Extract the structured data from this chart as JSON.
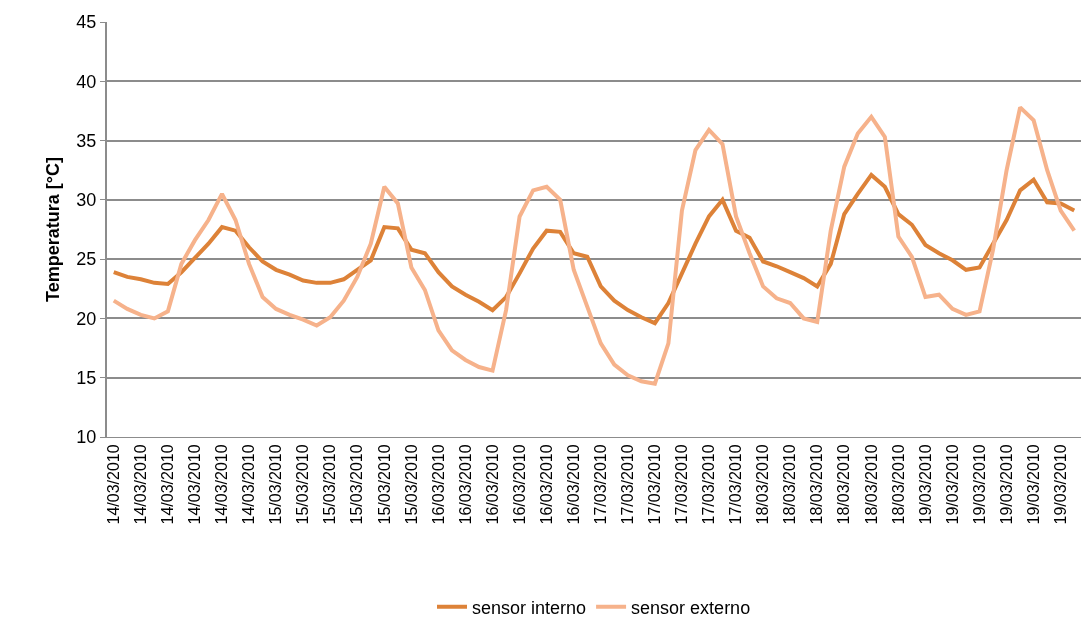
{
  "chart_data": {
    "type": "line",
    "ylabel": "Temperatura [°C]",
    "categories": [
      "14/03/2010",
      null,
      "14/03/2010",
      null,
      "14/03/2010",
      null,
      "14/03/2010",
      null,
      "14/03/2010",
      null,
      "14/03/2010",
      null,
      "15/03/2010",
      null,
      "15/03/2010",
      null,
      "15/03/2010",
      null,
      "15/03/2010",
      null,
      "15/03/2010",
      null,
      "15/03/2010",
      null,
      "16/03/2010",
      null,
      "16/03/2010",
      null,
      "16/03/2010",
      null,
      "16/03/2010",
      null,
      "16/03/2010",
      null,
      "16/03/2010",
      null,
      "17/03/2010",
      null,
      "17/03/2010",
      null,
      "17/03/2010",
      null,
      "17/03/2010",
      null,
      "17/03/2010",
      null,
      "17/03/2010",
      null,
      "18/03/2010",
      null,
      "18/03/2010",
      null,
      "18/03/2010",
      null,
      "18/03/2010",
      null,
      "18/03/2010",
      null,
      "18/03/2010",
      null,
      "19/03/2010",
      null,
      "19/03/2010",
      null,
      "19/03/2010",
      null,
      "19/03/2010",
      null,
      "19/03/2010",
      null,
      "19/03/2010",
      null
    ],
    "series": [
      {
        "name": "sensor interno",
        "color": "#dd8238",
        "values": [
          23.9,
          23.5,
          23.3,
          23.0,
          22.9,
          23.9,
          25.1,
          26.3,
          27.7,
          27.4,
          26.0,
          24.8,
          24.1,
          23.7,
          23.2,
          23.0,
          23.0,
          23.3,
          24.1,
          24.9,
          27.7,
          27.6,
          25.8,
          25.5,
          23.9,
          22.7,
          22.0,
          21.4,
          20.7,
          21.8,
          23.8,
          25.9,
          27.4,
          27.3,
          25.5,
          25.2,
          22.7,
          21.5,
          20.7,
          20.1,
          19.6,
          21.3,
          23.8,
          26.3,
          28.6,
          30.0,
          27.4,
          26.8,
          24.8,
          24.4,
          23.9,
          23.4,
          22.7,
          24.6,
          28.8,
          30.5,
          32.1,
          31.1,
          28.8,
          27.9,
          26.2,
          25.5,
          24.9,
          24.1,
          24.3,
          26.3,
          28.3,
          30.8,
          31.7,
          29.8,
          29.7,
          29.1
        ]
      },
      {
        "name": "sensor externo",
        "color": "#f6b28b",
        "values": [
          21.5,
          20.8,
          20.3,
          20.0,
          20.6,
          24.6,
          26.6,
          28.3,
          30.5,
          28.3,
          24.6,
          21.8,
          20.8,
          20.3,
          19.9,
          19.4,
          20.1,
          21.5,
          23.5,
          26.3,
          31.1,
          29.7,
          24.3,
          22.4,
          19.0,
          17.3,
          16.5,
          15.9,
          15.6,
          20.7,
          28.6,
          30.8,
          31.1,
          30.0,
          24.1,
          21.0,
          17.9,
          16.1,
          15.2,
          14.7,
          14.5,
          17.9,
          29.1,
          34.2,
          35.9,
          34.7,
          28.6,
          25.5,
          22.7,
          21.7,
          21.3,
          20.0,
          19.7,
          27.4,
          32.8,
          35.6,
          37.0,
          35.3,
          26.9,
          25.2,
          21.8,
          22.0,
          20.8,
          20.3,
          20.6,
          25.8,
          32.5,
          37.8,
          36.7,
          32.5,
          29.1,
          27.4
        ]
      }
    ],
    "ylim": [
      10,
      45
    ],
    "yticks": [
      10,
      15,
      20,
      25,
      30,
      35,
      40,
      45
    ],
    "grid": "y",
    "legend": "bottom",
    "marker": "none",
    "line_style": "solid"
  }
}
